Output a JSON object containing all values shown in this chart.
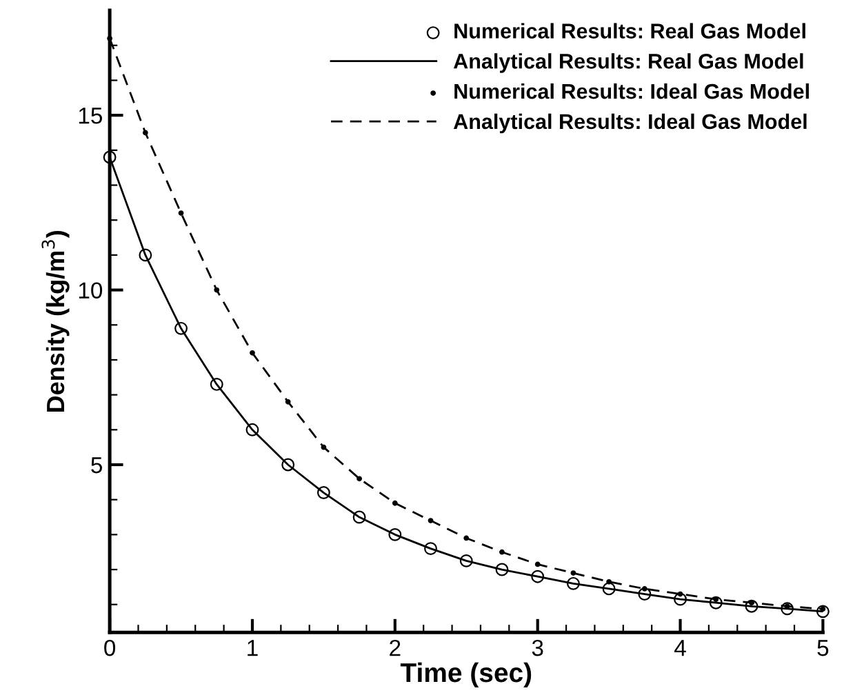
{
  "chart_data": {
    "type": "line",
    "xlabel": "Time (sec)",
    "ylabel": "Density (kg/m$^{3}$)",
    "xlim": [
      0,
      5
    ],
    "ylim": [
      0.2,
      18
    ],
    "xticks": [
      0,
      {
        "value": 0.2,
        "label": null
      },
      {
        "value": 0.4,
        "label": null
      },
      {
        "value": 0.6,
        "label": null
      },
      {
        "value": 0.8,
        "label": null
      },
      1,
      {
        "value": 1.2,
        "label": null
      },
      {
        "value": 1.4,
        "label": null
      },
      {
        "value": 1.6,
        "label": null
      },
      {
        "value": 1.8,
        "label": null
      },
      2,
      {
        "value": 2.2,
        "label": null
      },
      {
        "value": 2.4,
        "label": null
      },
      {
        "value": 2.6,
        "label": null
      },
      {
        "value": 2.8,
        "label": null
      },
      3,
      {
        "value": 3.2,
        "label": null
      },
      {
        "value": 3.4,
        "label": null
      },
      {
        "value": 3.6,
        "label": null
      },
      {
        "value": 3.8,
        "label": null
      },
      4,
      {
        "value": 4.2,
        "label": null
      },
      {
        "value": 4.4,
        "label": null
      },
      {
        "value": 4.6,
        "label": null
      },
      {
        "value": 4.8,
        "label": null
      },
      5
    ],
    "yticks": [
      {
        "value": 1,
        "label": null
      },
      {
        "value": 2,
        "label": null
      },
      {
        "value": 3,
        "label": null
      },
      {
        "value": 4,
        "label": null
      },
      5,
      {
        "value": 6,
        "label": null
      },
      {
        "value": 7,
        "label": null
      },
      {
        "value": 8,
        "label": null
      },
      {
        "value": 9,
        "label": null
      },
      10,
      {
        "value": 11,
        "label": null
      },
      {
        "value": 12,
        "label": null
      },
      {
        "value": 13,
        "label": null
      },
      {
        "value": 14,
        "label": null
      },
      15,
      {
        "value": 16,
        "label": null
      },
      {
        "value": 17,
        "label": null
      }
    ],
    "x": [
      0,
      0.25,
      0.5,
      0.75,
      1,
      1.25,
      1.5,
      1.75,
      2,
      2.25,
      2.5,
      2.75,
      3,
      3.25,
      3.5,
      3.75,
      4,
      4.25,
      4.5,
      4.75,
      5
    ],
    "grid": false,
    "legend": "top right",
    "series": [
      {
        "name": "Numerical Results: Real Gas Model",
        "type": "scatter",
        "marker": "circle",
        "color": "#000000",
        "values": [
          13.8,
          11.0,
          8.9,
          7.3,
          6.0,
          5.0,
          4.2,
          3.5,
          3.0,
          2.6,
          2.25,
          2.0,
          1.8,
          1.6,
          1.45,
          1.3,
          1.15,
          1.05,
          0.95,
          0.88,
          0.8
        ]
      },
      {
        "name": "Analytical Results: Real Gas Model",
        "type": "line",
        "line_style": "solid",
        "color": "#000000",
        "values": [
          13.8,
          11.0,
          8.9,
          7.3,
          6.0,
          5.0,
          4.2,
          3.5,
          3.0,
          2.6,
          2.25,
          2.0,
          1.8,
          1.6,
          1.45,
          1.3,
          1.15,
          1.05,
          0.95,
          0.88,
          0.8
        ]
      },
      {
        "name": "Numerical Results: Ideal Gas Model",
        "type": "scatter",
        "marker": "dot",
        "color": "#000000",
        "values": [
          17.2,
          14.5,
          12.2,
          10.0,
          8.2,
          6.8,
          5.5,
          4.6,
          3.9,
          3.4,
          2.9,
          2.5,
          2.15,
          1.9,
          1.65,
          1.45,
          1.3,
          1.15,
          1.05,
          0.95,
          0.87
        ]
      },
      {
        "name": "Analytical Results: Ideal Gas Model",
        "type": "line",
        "line_style": "dashed",
        "color": "#000000",
        "values": [
          17.2,
          14.5,
          12.2,
          10.0,
          8.2,
          6.8,
          5.5,
          4.6,
          3.9,
          3.4,
          2.9,
          2.5,
          2.15,
          1.9,
          1.65,
          1.45,
          1.3,
          1.15,
          1.05,
          0.95,
          0.87
        ]
      }
    ]
  }
}
